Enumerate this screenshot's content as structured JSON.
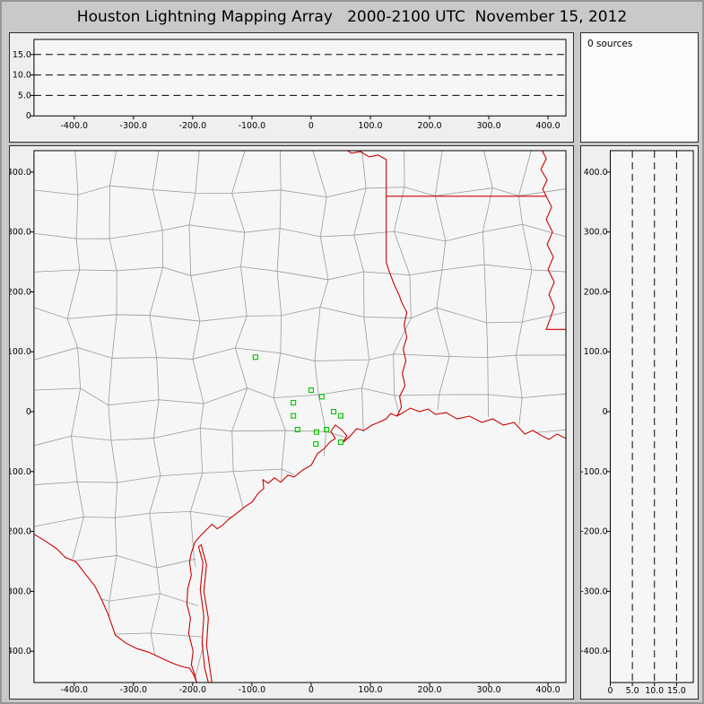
{
  "window": {
    "title": "Houston Lightning Mapping Array   2000-2100 UTC  November 15, 2012"
  },
  "status": {
    "sources_label": "0 sources"
  },
  "colors": {
    "background": "#c9c9c9",
    "panel": "#efefef",
    "plot_bg": "#f6f6f6",
    "county": "#9a9a9a",
    "state_border": "#cc0000",
    "station": "#00c400",
    "axis": "#000000"
  },
  "chart_data": [
    {
      "name": "altitude-vs-east-west",
      "type": "scatter",
      "description": "Altitude (km) vs east-west distance (km); no lightning sources plotted",
      "x_ticks": {
        "labels": [
          "-400.0",
          "-300.0",
          "-200.0",
          "-100.0",
          "0",
          "100.0",
          "200.0",
          "300.0",
          "400.0"
        ],
        "values": [
          -400,
          -300,
          -200,
          -100,
          0,
          100,
          200,
          300,
          400
        ]
      },
      "y_ticks": {
        "labels": [
          "15.0",
          "10.0",
          "5.0",
          "0"
        ],
        "values": [
          15,
          10,
          5,
          0
        ]
      },
      "gridlines_y": [
        5,
        10,
        15
      ],
      "xlim": [
        -468,
        430
      ],
      "ylim": [
        0,
        19
      ],
      "points": []
    },
    {
      "name": "plan-view-map",
      "type": "scatter",
      "description": "Plan view map of Texas / Louisiana Gulf coast with county boundaries (gray), state borders and coastline (red), LMA station locations (green squares); no lightning sources plotted",
      "x_ticks": {
        "labels": [
          "-400.0",
          "-300.0",
          "-200.0",
          "-100.0",
          "0",
          "100.0",
          "200.0",
          "300.0",
          "400.0"
        ],
        "values": [
          -400,
          -300,
          -200,
          -100,
          0,
          100,
          200,
          300,
          400
        ]
      },
      "y_ticks": {
        "labels": [
          "400.0",
          "300.0",
          "200.0",
          "100.0",
          "0",
          "-100.0",
          "-200.0",
          "-300.0",
          "-400.0"
        ],
        "values": [
          400,
          300,
          200,
          100,
          0,
          -100,
          -200,
          -300,
          -400
        ]
      },
      "xlim": [
        -468,
        430
      ],
      "ylim": [
        -452,
        436
      ],
      "stations": [
        [
          -94,
          91
        ],
        [
          0,
          36
        ],
        [
          18,
          25
        ],
        [
          -30,
          15
        ],
        [
          -30,
          -7
        ],
        [
          38,
          0
        ],
        [
          50,
          -7
        ],
        [
          -23,
          -30
        ],
        [
          9,
          -34
        ],
        [
          26,
          -30
        ],
        [
          8,
          -54
        ],
        [
          50,
          -51
        ]
      ],
      "points": []
    },
    {
      "name": "altitude-vs-north-south",
      "type": "scatter",
      "description": "North-south distance (km) vs altitude (km); no lightning sources plotted",
      "x_ticks": {
        "labels": [
          "0",
          "5.0",
          "10.0",
          "15.0"
        ],
        "values": [
          0,
          5,
          10,
          15
        ]
      },
      "y_ticks": {
        "labels": [
          "400.0",
          "300.0",
          "200.0",
          "100.0",
          "0",
          "-100.0",
          "-200.0",
          "-300.0",
          "-400.0"
        ],
        "values": [
          400,
          300,
          200,
          100,
          0,
          -100,
          -200,
          -300,
          -400
        ]
      },
      "gridlines_x": [
        5,
        10,
        15
      ],
      "xlim": [
        0,
        19
      ],
      "ylim": [
        -452,
        436
      ],
      "points": []
    }
  ]
}
